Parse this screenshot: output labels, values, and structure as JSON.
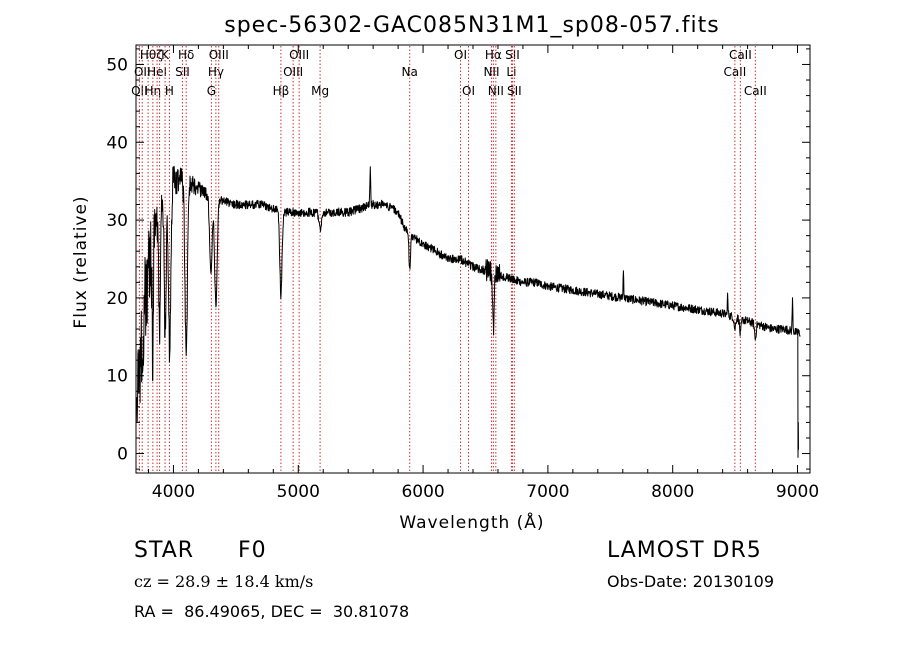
{
  "chart_data": {
    "type": "line",
    "title": "spec-56302-GAC085N31M1_sp08-057.fits",
    "xlabel": "Wavelength (Å)",
    "ylabel": "Flux (relative)",
    "xlim": [
      3700,
      9100
    ],
    "ylim": [
      -2.5,
      52.5
    ],
    "xticks": [
      4000,
      5000,
      6000,
      7000,
      8000,
      9000
    ],
    "yticks": [
      0,
      10,
      20,
      30,
      40,
      50
    ],
    "grid": false,
    "legend": "none",
    "line_color": "#000000",
    "marker_color": "#cc3333",
    "spectrum_anchors": {
      "x": [
        3705,
        3720,
        3740,
        3760,
        3780,
        3800,
        3830,
        3860,
        3890,
        3920,
        3950,
        3980,
        4000,
        4050,
        4100,
        4150,
        4200,
        4300,
        4400,
        4500,
        4600,
        4700,
        4800,
        4900,
        5000,
        5100,
        5200,
        5300,
        5400,
        5500,
        5600,
        5700,
        5800,
        5850,
        5900,
        6000,
        6100,
        6200,
        6300,
        6400,
        6500,
        6600,
        6700,
        6800,
        6900,
        7000,
        7200,
        7400,
        7600,
        7800,
        8000,
        8200,
        8400,
        8500,
        8600,
        8700,
        8800,
        8900,
        9000
      ],
      "y": [
        1,
        9,
        13,
        17,
        22,
        24,
        28,
        30,
        32,
        33,
        34,
        35,
        35,
        35,
        35,
        34.5,
        34,
        33,
        32.5,
        32,
        32,
        32,
        31.5,
        31,
        31,
        31,
        31,
        31,
        31,
        31.5,
        32,
        32,
        31,
        29,
        28,
        27,
        26,
        25,
        25,
        24,
        23.5,
        23,
        22.5,
        22,
        22,
        21.5,
        21,
        20.5,
        20,
        19.5,
        19,
        18.5,
        18,
        17.5,
        17,
        16.5,
        16,
        16,
        15.5
      ]
    },
    "absorption_features": [
      {
        "x": 3835,
        "depth": 14,
        "width": 6
      },
      {
        "x": 3889,
        "depth": 16,
        "width": 7
      },
      {
        "x": 3934,
        "depth": 18,
        "width": 8
      },
      {
        "x": 3970,
        "depth": 22,
        "width": 9
      },
      {
        "x": 4102,
        "depth": 22,
        "width": 10
      },
      {
        "x": 4300,
        "depth": 10,
        "width": 10
      },
      {
        "x": 4340,
        "depth": 14,
        "width": 10
      },
      {
        "x": 4861,
        "depth": 11,
        "width": 9
      },
      {
        "x": 5175,
        "depth": 2,
        "width": 10
      },
      {
        "x": 5893,
        "depth": 4.5,
        "width": 6
      },
      {
        "x": 6563,
        "depth": 7,
        "width": 6
      },
      {
        "x": 8498,
        "depth": 1.5,
        "width": 6
      },
      {
        "x": 8542,
        "depth": 2,
        "width": 6
      },
      {
        "x": 8662,
        "depth": 2,
        "width": 6
      }
    ],
    "emission_features": [
      {
        "x": 5577,
        "height": 5,
        "width": 3
      },
      {
        "x": 7605,
        "height": 3.5,
        "width": 3
      },
      {
        "x": 8440,
        "height": 2.5,
        "width": 3
      },
      {
        "x": 8960,
        "height": 4,
        "width": 3
      }
    ],
    "line_markers": [
      {
        "x": 3727,
        "label": "OII",
        "row": 3
      },
      {
        "x": 3750,
        "label": "OII",
        "row": 2
      },
      {
        "x": 3797,
        "label": "Hθ",
        "row": 1
      },
      {
        "x": 3835,
        "label": "Hη",
        "row": 3
      },
      {
        "x": 3869,
        "label": "HeI",
        "row": 2
      },
      {
        "x": 3889,
        "label": "ζ",
        "row": 1
      },
      {
        "x": 3933,
        "label": "K",
        "row": 1
      },
      {
        "x": 3968,
        "label": "H",
        "row": 3
      },
      {
        "x": 4072,
        "label": "SII",
        "row": 2
      },
      {
        "x": 4102,
        "label": "Hδ",
        "row": 1
      },
      {
        "x": 4304,
        "label": "G",
        "row": 3
      },
      {
        "x": 4340,
        "label": "Hγ",
        "row": 2
      },
      {
        "x": 4363,
        "label": "OIII",
        "row": 1
      },
      {
        "x": 4861,
        "label": "Hβ",
        "row": 3
      },
      {
        "x": 4959,
        "label": "OIII",
        "row": 2
      },
      {
        "x": 5007,
        "label": "OIII",
        "row": 1
      },
      {
        "x": 5175,
        "label": "Mg",
        "row": 3
      },
      {
        "x": 5893,
        "label": "Na",
        "row": 2
      },
      {
        "x": 6300,
        "label": "OI",
        "row": 1
      },
      {
        "x": 6364,
        "label": "OI",
        "row": 3
      },
      {
        "x": 6548,
        "label": "NII",
        "row": 2
      },
      {
        "x": 6563,
        "label": "Hα",
        "row": 1
      },
      {
        "x": 6583,
        "label": "NII",
        "row": 3
      },
      {
        "x": 6708,
        "label": "Li",
        "row": 2
      },
      {
        "x": 6716,
        "label": "SII",
        "row": 1
      },
      {
        "x": 6731,
        "label": "SII",
        "row": 3
      },
      {
        "x": 8498,
        "label": "CaII",
        "row": 2
      },
      {
        "x": 8542,
        "label": "CaII",
        "row": 1
      },
      {
        "x": 8662,
        "label": "CaII",
        "row": 3
      }
    ]
  },
  "info": {
    "object_class": "STAR",
    "subclass": "F0",
    "redshift": "cz = 28.9 ± 18.4 km/s",
    "coords": "RA =  86.49065, DEC =  30.81078",
    "survey": "LAMOST DR5",
    "obs_date": "Obs-Date: 20130109"
  }
}
